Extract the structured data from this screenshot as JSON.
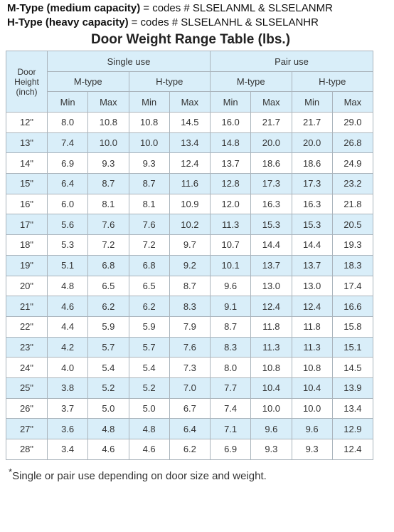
{
  "header": {
    "lines": [
      {
        "label": "M-Type (medium capacity)",
        "text": "= codes # SLSELANML & SLSELANMR"
      },
      {
        "label": "H-Type (heavy capacity)",
        "text": "= codes # SLSELANHL & SLSELANHR"
      }
    ],
    "title": "Door Weight Range Table (lbs.)"
  },
  "table": {
    "corner": [
      "Door",
      "Height",
      "(inch)"
    ],
    "groups": [
      "Single use",
      "Pair use"
    ],
    "types": [
      "M-type",
      "H-type",
      "M-type",
      "H-type"
    ],
    "limits": [
      "Min",
      "Max",
      "Min",
      "Max",
      "Min",
      "Max",
      "Min",
      "Max"
    ],
    "rows": [
      [
        "12\"",
        "8.0",
        "10.8",
        "10.8",
        "14.5",
        "16.0",
        "21.7",
        "21.7",
        "29.0"
      ],
      [
        "13\"",
        "7.4",
        "10.0",
        "10.0",
        "13.4",
        "14.8",
        "20.0",
        "20.0",
        "26.8"
      ],
      [
        "14\"",
        "6.9",
        "9.3",
        "9.3",
        "12.4",
        "13.7",
        "18.6",
        "18.6",
        "24.9"
      ],
      [
        "15\"",
        "6.4",
        "8.7",
        "8.7",
        "11.6",
        "12.8",
        "17.3",
        "17.3",
        "23.2"
      ],
      [
        "16\"",
        "6.0",
        "8.1",
        "8.1",
        "10.9",
        "12.0",
        "16.3",
        "16.3",
        "21.8"
      ],
      [
        "17\"",
        "5.6",
        "7.6",
        "7.6",
        "10.2",
        "11.3",
        "15.3",
        "15.3",
        "20.5"
      ],
      [
        "18\"",
        "5.3",
        "7.2",
        "7.2",
        "9.7",
        "10.7",
        "14.4",
        "14.4",
        "19.3"
      ],
      [
        "19\"",
        "5.1",
        "6.8",
        "6.8",
        "9.2",
        "10.1",
        "13.7",
        "13.7",
        "18.3"
      ],
      [
        "20\"",
        "4.8",
        "6.5",
        "6.5",
        "8.7",
        "9.6",
        "13.0",
        "13.0",
        "17.4"
      ],
      [
        "21\"",
        "4.6",
        "6.2",
        "6.2",
        "8.3",
        "9.1",
        "12.4",
        "12.4",
        "16.6"
      ],
      [
        "22\"",
        "4.4",
        "5.9",
        "5.9",
        "7.9",
        "8.7",
        "11.8",
        "11.8",
        "15.8"
      ],
      [
        "23\"",
        "4.2",
        "5.7",
        "5.7",
        "7.6",
        "8.3",
        "11.3",
        "11.3",
        "15.1"
      ],
      [
        "24\"",
        "4.0",
        "5.4",
        "5.4",
        "7.3",
        "8.0",
        "10.8",
        "10.8",
        "14.5"
      ],
      [
        "25\"",
        "3.8",
        "5.2",
        "5.2",
        "7.0",
        "7.7",
        "10.4",
        "10.4",
        "13.9"
      ],
      [
        "26\"",
        "3.7",
        "5.0",
        "5.0",
        "6.7",
        "7.4",
        "10.0",
        "10.0",
        "13.4"
      ],
      [
        "27\"",
        "3.6",
        "4.8",
        "4.8",
        "6.4",
        "7.1",
        "9.6",
        "9.6",
        "12.9"
      ],
      [
        "28\"",
        "3.4",
        "4.6",
        "4.6",
        "6.2",
        "6.9",
        "9.3",
        "9.3",
        "12.4"
      ]
    ]
  },
  "footnote": {
    "mark": "*",
    "text": "Single or pair use depending on door size and weight."
  }
}
